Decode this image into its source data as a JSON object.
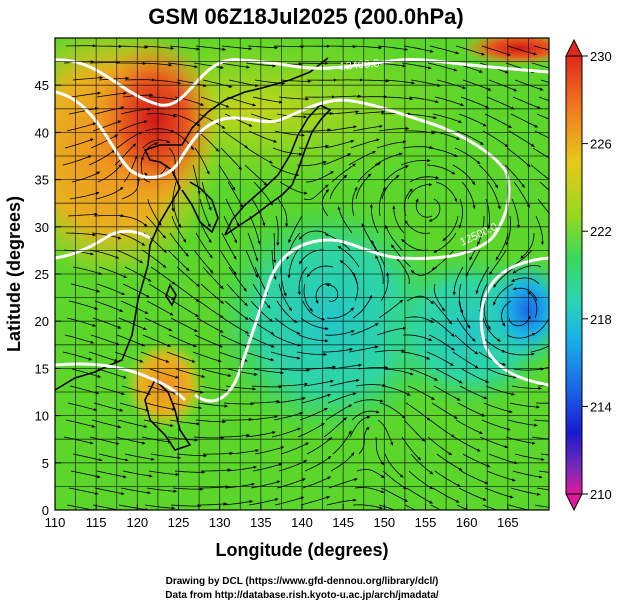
{
  "title": "GSM 06Z18Jul2025 (200.0hPa)",
  "x_axis": {
    "label": "Longitude (degrees)",
    "range": [
      110,
      170
    ],
    "ticks": [
      110,
      115,
      120,
      125,
      130,
      135,
      140,
      145,
      150,
      155,
      160,
      165
    ]
  },
  "y_axis": {
    "label": "Latitude  (degrees)",
    "range": [
      0,
      50
    ],
    "ticks": [
      0,
      5,
      10,
      15,
      20,
      25,
      30,
      35,
      40,
      45
    ]
  },
  "colorbar": {
    "ticks": [
      "230",
      "226",
      "222",
      "218",
      "214",
      "210"
    ],
    "range": [
      210,
      230
    ],
    "colors": [
      "#e0189c",
      "#6d2db8",
      "#1a1ad0",
      "#1a66e6",
      "#19b4e6",
      "#2ad6b4",
      "#3cd85a",
      "#58d22a",
      "#9ad81e",
      "#d8d21a",
      "#f0a01e",
      "#e85a1e",
      "#d8201e"
    ]
  },
  "contour_labels": [
    "12400.0",
    "12500.0"
  ],
  "credits": {
    "drawing": "Drawing by DCL (https://www.gfd-dennou.org/library/dcl/)",
    "data": "Data from http://database.rish.kyoto-u.ac.jp/arch/jmadata/"
  },
  "colors": {
    "warm_max": "#d8201e",
    "cool_min": "#1a66e6",
    "contour": "#ffffff",
    "streamline": "#000000"
  }
}
